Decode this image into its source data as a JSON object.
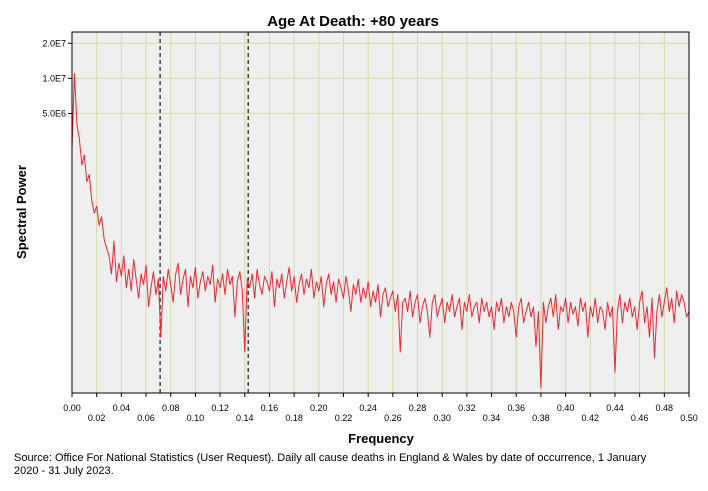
{
  "chart_data": {
    "type": "line",
    "title": "Age At Death: +80 years",
    "xlabel": "Frequency",
    "ylabel": "Spectral Power",
    "xlim": [
      0.0,
      0.5
    ],
    "y_scale": "log",
    "ylim": [
      20000,
      25000000
    ],
    "x_ticks": [
      0.0,
      0.02,
      0.04,
      0.06,
      0.08,
      0.1,
      0.12,
      0.14,
      0.16,
      0.18,
      0.2,
      0.22,
      0.24,
      0.26,
      0.28,
      0.3,
      0.32,
      0.34,
      0.36,
      0.38,
      0.4,
      0.42,
      0.44,
      0.46,
      0.48,
      0.5
    ],
    "x_tick_labels": [
      "0.00",
      "0.02",
      "0.04",
      "0.06",
      "0.08",
      "0.10",
      "0.12",
      "0.14",
      "0.16",
      "0.18",
      "0.20",
      "0.22",
      "0.24",
      "0.26",
      "0.28",
      "0.30",
      "0.32",
      "0.34",
      "0.36",
      "0.38",
      "0.40",
      "0.42",
      "0.44",
      "0.46",
      "0.48",
      "0.50"
    ],
    "y_ticks": [
      20000000,
      10000000,
      5000000
    ],
    "y_tick_labels": [
      "2.0E7",
      "1.0E7",
      "5.0E6"
    ],
    "vertical_reference_lines": [
      0.0714,
      0.1428
    ],
    "grid": true,
    "series": [
      {
        "name": "Spectral Power",
        "color": "#e8282e",
        "points": [
          [
            0.0,
            2500000
          ],
          [
            0.002,
            11000000
          ],
          [
            0.004,
            4000000
          ],
          [
            0.006,
            3000000
          ],
          [
            0.008,
            1800000
          ],
          [
            0.01,
            2200000
          ],
          [
            0.012,
            1300000
          ],
          [
            0.014,
            1500000
          ],
          [
            0.016,
            900000
          ],
          [
            0.018,
            700000
          ],
          [
            0.02,
            800000
          ],
          [
            0.022,
            550000
          ],
          [
            0.024,
            650000
          ],
          [
            0.026,
            420000
          ],
          [
            0.028,
            350000
          ],
          [
            0.03,
            300000
          ],
          [
            0.032,
            210000
          ],
          [
            0.034,
            400000
          ],
          [
            0.036,
            180000
          ],
          [
            0.038,
            260000
          ],
          [
            0.04,
            200000
          ],
          [
            0.042,
            300000
          ],
          [
            0.044,
            160000
          ],
          [
            0.046,
            230000
          ],
          [
            0.048,
            150000
          ],
          [
            0.05,
            280000
          ],
          [
            0.052,
            190000
          ],
          [
            0.054,
            130000
          ],
          [
            0.056,
            210000
          ],
          [
            0.058,
            170000
          ],
          [
            0.06,
            250000
          ],
          [
            0.062,
            110000
          ],
          [
            0.064,
            160000
          ],
          [
            0.066,
            220000
          ],
          [
            0.068,
            140000
          ],
          [
            0.07,
            190000
          ],
          [
            0.072,
            60000
          ],
          [
            0.074,
            200000
          ],
          [
            0.076,
            150000
          ],
          [
            0.078,
            230000
          ],
          [
            0.08,
            170000
          ],
          [
            0.082,
            120000
          ],
          [
            0.084,
            210000
          ],
          [
            0.086,
            260000
          ],
          [
            0.088,
            140000
          ],
          [
            0.09,
            190000
          ],
          [
            0.092,
            230000
          ],
          [
            0.094,
            110000
          ],
          [
            0.096,
            200000
          ],
          [
            0.098,
            160000
          ],
          [
            0.1,
            240000
          ],
          [
            0.102,
            130000
          ],
          [
            0.104,
            180000
          ],
          [
            0.106,
            220000
          ],
          [
            0.108,
            150000
          ],
          [
            0.11,
            200000
          ],
          [
            0.112,
            170000
          ],
          [
            0.114,
            250000
          ],
          [
            0.116,
            120000
          ],
          [
            0.118,
            190000
          ],
          [
            0.12,
            160000
          ],
          [
            0.122,
            210000
          ],
          [
            0.124,
            140000
          ],
          [
            0.126,
            230000
          ],
          [
            0.128,
            170000
          ],
          [
            0.13,
            200000
          ],
          [
            0.132,
            90000
          ],
          [
            0.134,
            180000
          ],
          [
            0.136,
            220000
          ],
          [
            0.138,
            150000
          ],
          [
            0.14,
            45000
          ],
          [
            0.142,
            190000
          ],
          [
            0.144,
            160000
          ],
          [
            0.146,
            210000
          ],
          [
            0.148,
            130000
          ],
          [
            0.15,
            230000
          ],
          [
            0.152,
            170000
          ],
          [
            0.154,
            140000
          ],
          [
            0.156,
            200000
          ],
          [
            0.158,
            180000
          ],
          [
            0.16,
            150000
          ],
          [
            0.162,
            220000
          ],
          [
            0.164,
            110000
          ],
          [
            0.166,
            190000
          ],
          [
            0.168,
            160000
          ],
          [
            0.17,
            210000
          ],
          [
            0.172,
            130000
          ],
          [
            0.174,
            180000
          ],
          [
            0.176,
            240000
          ],
          [
            0.178,
            150000
          ],
          [
            0.18,
            200000
          ],
          [
            0.182,
            120000
          ],
          [
            0.184,
            170000
          ],
          [
            0.186,
            210000
          ],
          [
            0.188,
            140000
          ],
          [
            0.19,
            190000
          ],
          [
            0.192,
            160000
          ],
          [
            0.194,
            230000
          ],
          [
            0.196,
            130000
          ],
          [
            0.198,
            180000
          ],
          [
            0.2,
            150000
          ],
          [
            0.202,
            200000
          ],
          [
            0.204,
            110000
          ],
          [
            0.206,
            170000
          ],
          [
            0.208,
            210000
          ],
          [
            0.21,
            140000
          ],
          [
            0.212,
            180000
          ],
          [
            0.214,
            120000
          ],
          [
            0.216,
            190000
          ],
          [
            0.218,
            160000
          ],
          [
            0.22,
            130000
          ],
          [
            0.222,
            200000
          ],
          [
            0.224,
            150000
          ],
          [
            0.226,
            100000
          ],
          [
            0.228,
            170000
          ],
          [
            0.23,
            140000
          ],
          [
            0.232,
            190000
          ],
          [
            0.234,
            120000
          ],
          [
            0.236,
            160000
          ],
          [
            0.238,
            130000
          ],
          [
            0.24,
            180000
          ],
          [
            0.242,
            110000
          ],
          [
            0.244,
            150000
          ],
          [
            0.246,
            120000
          ],
          [
            0.248,
            170000
          ],
          [
            0.25,
            90000
          ],
          [
            0.252,
            140000
          ],
          [
            0.254,
            160000
          ],
          [
            0.256,
            110000
          ],
          [
            0.258,
            130000
          ],
          [
            0.26,
            150000
          ],
          [
            0.262,
            100000
          ],
          [
            0.264,
            140000
          ],
          [
            0.266,
            45000
          ],
          [
            0.268,
            120000
          ],
          [
            0.27,
            130000
          ],
          [
            0.272,
            100000
          ],
          [
            0.274,
            150000
          ],
          [
            0.276,
            90000
          ],
          [
            0.278,
            120000
          ],
          [
            0.28,
            140000
          ],
          [
            0.282,
            80000
          ],
          [
            0.284,
            110000
          ],
          [
            0.286,
            130000
          ],
          [
            0.288,
            100000
          ],
          [
            0.29,
            60000
          ],
          [
            0.292,
            120000
          ],
          [
            0.294,
            140000
          ],
          [
            0.296,
            90000
          ],
          [
            0.298,
            110000
          ],
          [
            0.3,
            130000
          ],
          [
            0.302,
            80000
          ],
          [
            0.304,
            120000
          ],
          [
            0.306,
            100000
          ],
          [
            0.308,
            140000
          ],
          [
            0.31,
            90000
          ],
          [
            0.312,
            110000
          ],
          [
            0.314,
            130000
          ],
          [
            0.316,
            70000
          ],
          [
            0.318,
            120000
          ],
          [
            0.32,
            100000
          ],
          [
            0.322,
            140000
          ],
          [
            0.324,
            90000
          ],
          [
            0.326,
            110000
          ],
          [
            0.328,
            120000
          ],
          [
            0.33,
            80000
          ],
          [
            0.332,
            130000
          ],
          [
            0.334,
            100000
          ],
          [
            0.336,
            120000
          ],
          [
            0.338,
            90000
          ],
          [
            0.34,
            110000
          ],
          [
            0.342,
            70000
          ],
          [
            0.344,
            120000
          ],
          [
            0.346,
            100000
          ],
          [
            0.348,
            130000
          ],
          [
            0.35,
            80000
          ],
          [
            0.352,
            110000
          ],
          [
            0.354,
            90000
          ],
          [
            0.356,
            120000
          ],
          [
            0.358,
            100000
          ],
          [
            0.36,
            60000
          ],
          [
            0.362,
            110000
          ],
          [
            0.364,
            130000
          ],
          [
            0.366,
            80000
          ],
          [
            0.368,
            100000
          ],
          [
            0.37,
            120000
          ],
          [
            0.372,
            90000
          ],
          [
            0.374,
            110000
          ],
          [
            0.376,
            50000
          ],
          [
            0.378,
            100000
          ],
          [
            0.38,
            22000
          ],
          [
            0.382,
            120000
          ],
          [
            0.384,
            80000
          ],
          [
            0.386,
            110000
          ],
          [
            0.388,
            130000
          ],
          [
            0.39,
            90000
          ],
          [
            0.392,
            140000
          ],
          [
            0.394,
            70000
          ],
          [
            0.396,
            110000
          ],
          [
            0.398,
            100000
          ],
          [
            0.4,
            130000
          ],
          [
            0.402,
            80000
          ],
          [
            0.404,
            120000
          ],
          [
            0.406,
            95000
          ],
          [
            0.408,
            110000
          ],
          [
            0.41,
            75000
          ],
          [
            0.412,
            130000
          ],
          [
            0.414,
            100000
          ],
          [
            0.416,
            120000
          ],
          [
            0.418,
            60000
          ],
          [
            0.42,
            110000
          ],
          [
            0.422,
            90000
          ],
          [
            0.424,
            130000
          ],
          [
            0.426,
            80000
          ],
          [
            0.428,
            110000
          ],
          [
            0.43,
            100000
          ],
          [
            0.432,
            70000
          ],
          [
            0.434,
            120000
          ],
          [
            0.436,
            90000
          ],
          [
            0.438,
            110000
          ],
          [
            0.44,
            30000
          ],
          [
            0.442,
            100000
          ],
          [
            0.444,
            140000
          ],
          [
            0.446,
            80000
          ],
          [
            0.448,
            120000
          ],
          [
            0.45,
            100000
          ],
          [
            0.452,
            130000
          ],
          [
            0.454,
            90000
          ],
          [
            0.456,
            110000
          ],
          [
            0.458,
            70000
          ],
          [
            0.46,
            120000
          ],
          [
            0.462,
            150000
          ],
          [
            0.464,
            80000
          ],
          [
            0.466,
            110000
          ],
          [
            0.468,
            60000
          ],
          [
            0.47,
            130000
          ],
          [
            0.472,
            40000
          ],
          [
            0.474,
            100000
          ],
          [
            0.476,
            140000
          ],
          [
            0.478,
            90000
          ],
          [
            0.48,
            120000
          ],
          [
            0.482,
            160000
          ],
          [
            0.484,
            100000
          ],
          [
            0.486,
            130000
          ],
          [
            0.488,
            80000
          ],
          [
            0.49,
            150000
          ],
          [
            0.492,
            110000
          ],
          [
            0.494,
            140000
          ],
          [
            0.496,
            120000
          ],
          [
            0.498,
            90000
          ],
          [
            0.5,
            100000
          ]
        ]
      }
    ],
    "source_note": "Source: Office For National Statistics (User Request). Daily all cause deaths in England & Wales by date of occurrence, 1 January 2020 - 31 July 2023."
  }
}
